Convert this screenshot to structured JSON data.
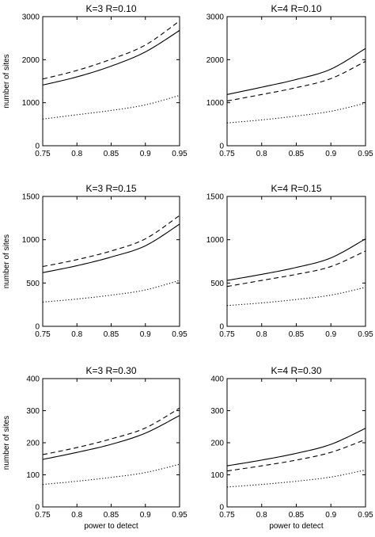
{
  "chart_data": [
    {
      "type": "line",
      "title": "K=3 R=0.10",
      "xlabel": "",
      "ylabel": "number of sites",
      "xlim": [
        0.75,
        0.95
      ],
      "ylim": [
        0,
        3000
      ],
      "xticks": [
        "0.75",
        "0.8",
        "0.85",
        "0.9",
        "0.95"
      ],
      "yticks": [
        "0",
        "1000",
        "2000",
        "3000"
      ],
      "x": [
        0.75,
        0.8,
        0.85,
        0.9,
        0.95
      ],
      "series": [
        {
          "style": "solid",
          "values": [
            1410,
            1600,
            1850,
            2180,
            2680
          ]
        },
        {
          "style": "dashed",
          "values": [
            1550,
            1750,
            2010,
            2340,
            2900
          ]
        },
        {
          "style": "dotted",
          "values": [
            620,
            720,
            820,
            950,
            1170
          ]
        }
      ]
    },
    {
      "type": "line",
      "title": "K=4 R=0.10",
      "xlabel": "",
      "ylabel": "",
      "xlim": [
        0.75,
        0.95
      ],
      "ylim": [
        0,
        3000
      ],
      "xticks": [
        "0.75",
        "0.8",
        "0.85",
        "0.9",
        "0.95"
      ],
      "yticks": [
        "0",
        "1000",
        "2000",
        "3000"
      ],
      "x": [
        0.75,
        0.8,
        0.85,
        0.9,
        0.95
      ],
      "series": [
        {
          "style": "solid",
          "values": [
            1190,
            1360,
            1540,
            1780,
            2260
          ]
        },
        {
          "style": "dashed",
          "values": [
            1040,
            1190,
            1350,
            1560,
            1960
          ]
        },
        {
          "style": "dotted",
          "values": [
            530,
            600,
            690,
            800,
            990
          ]
        }
      ]
    },
    {
      "type": "line",
      "title": "K=3 R=0.15",
      "xlabel": "",
      "ylabel": "number of sites",
      "xlim": [
        0.75,
        0.95
      ],
      "ylim": [
        0,
        1500
      ],
      "xticks": [
        "0.75",
        "0.8",
        "0.85",
        "0.9",
        "0.95"
      ],
      "yticks": [
        "0",
        "500",
        "1000",
        "1500"
      ],
      "x": [
        0.75,
        0.8,
        0.85,
        0.9,
        0.95
      ],
      "series": [
        {
          "style": "solid",
          "values": [
            620,
            700,
            800,
            930,
            1180
          ]
        },
        {
          "style": "dashed",
          "values": [
            690,
            770,
            870,
            1010,
            1280
          ]
        },
        {
          "style": "dotted",
          "values": [
            280,
            315,
            360,
            420,
            530
          ]
        }
      ]
    },
    {
      "type": "line",
      "title": "K=4 R=0.15",
      "xlabel": "",
      "ylabel": "",
      "xlim": [
        0.75,
        0.95
      ],
      "ylim": [
        0,
        1500
      ],
      "xticks": [
        "0.75",
        "0.8",
        "0.85",
        "0.9",
        "0.95"
      ],
      "yticks": [
        "0",
        "500",
        "1000",
        "1500"
      ],
      "x": [
        0.75,
        0.8,
        0.85,
        0.9,
        0.95
      ],
      "series": [
        {
          "style": "solid",
          "values": [
            530,
            600,
            680,
            790,
            1010
          ]
        },
        {
          "style": "dashed",
          "values": [
            460,
            530,
            600,
            690,
            870
          ]
        },
        {
          "style": "dotted",
          "values": [
            240,
            270,
            310,
            360,
            450
          ]
        }
      ]
    },
    {
      "type": "line",
      "title": "K=3 R=0.30",
      "xlabel": "power to detect",
      "ylabel": "number of sites",
      "xlim": [
        0.75,
        0.95
      ],
      "ylim": [
        0,
        400
      ],
      "xticks": [
        "0.75",
        "0.8",
        "0.85",
        "0.9",
        "0.95"
      ],
      "yticks": [
        "0",
        "100",
        "200",
        "300",
        "400"
      ],
      "x": [
        0.75,
        0.8,
        0.85,
        0.9,
        0.95
      ],
      "series": [
        {
          "style": "solid",
          "values": [
            148,
            170,
            195,
            230,
            285
          ]
        },
        {
          "style": "dashed",
          "values": [
            163,
            185,
            212,
            246,
            308
          ]
        },
        {
          "style": "dotted",
          "values": [
            70,
            80,
            92,
            107,
            133
          ]
        }
      ]
    },
    {
      "type": "line",
      "title": "K=4 R=0.30",
      "xlabel": "power to detect",
      "ylabel": "",
      "xlim": [
        0.75,
        0.95
      ],
      "ylim": [
        0,
        400
      ],
      "xticks": [
        "0.75",
        "0.8",
        "0.85",
        "0.9",
        "0.95"
      ],
      "yticks": [
        "0",
        "100",
        "200",
        "300",
        "400"
      ],
      "x": [
        0.75,
        0.8,
        0.85,
        0.9,
        0.95
      ],
      "series": [
        {
          "style": "solid",
          "values": [
            128,
            146,
            167,
            195,
            245
          ]
        },
        {
          "style": "dashed",
          "values": [
            112,
            128,
            146,
            170,
            210
          ]
        },
        {
          "style": "dotted",
          "values": [
            62,
            70,
            80,
            93,
            115
          ]
        }
      ]
    }
  ]
}
